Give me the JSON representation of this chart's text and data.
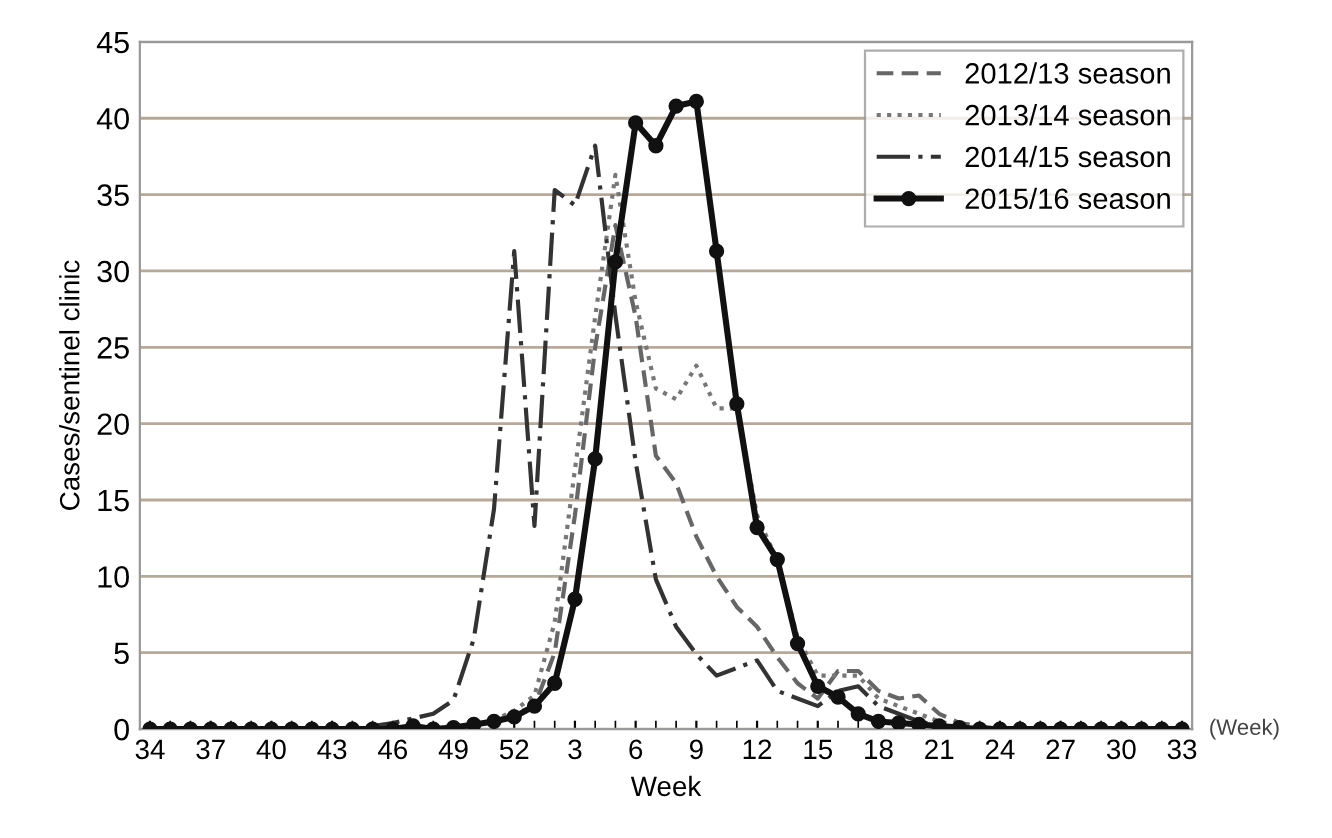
{
  "chart_data": {
    "type": "line",
    "xlabel": "Week",
    "ylabel": "Cases/sentinel clinic",
    "categories": [
      "34",
      null,
      null,
      "37",
      null,
      null,
      "40",
      null,
      null,
      "43",
      null,
      null,
      "46",
      null,
      null,
      "49",
      null,
      null,
      "52",
      null,
      null,
      "3",
      null,
      null,
      "6",
      null,
      null,
      "9",
      null,
      null,
      "12",
      null,
      null,
      "15",
      null,
      null,
      "18",
      null,
      null,
      "21",
      null,
      null,
      "24",
      null,
      null,
      "27",
      null,
      null,
      "30",
      null,
      null,
      "33"
    ],
    "series": [
      {
        "name": "2012/13 season",
        "color": "#666666",
        "line_style": "dashed",
        "marker": "none",
        "values": [
          0,
          0,
          0,
          0,
          0,
          0,
          0,
          0,
          0,
          0,
          0,
          0,
          0,
          0,
          0,
          0.1,
          0.2,
          0.5,
          1.0,
          1.5,
          5,
          14,
          25,
          33,
          27,
          17.9,
          16.1,
          12.6,
          10,
          8,
          6.7,
          4.7,
          3,
          2,
          3.8,
          3.8,
          2.5,
          2,
          2.2,
          1,
          0.4,
          0.2,
          0,
          0,
          0,
          0,
          0,
          0,
          0,
          0,
          0,
          0
        ]
      },
      {
        "name": "2013/14 season",
        "color": "#777777",
        "line_style": "dotted",
        "marker": "none",
        "values": [
          0,
          0,
          0,
          0,
          0,
          0,
          0,
          0,
          0,
          0,
          0,
          0,
          0,
          0,
          0,
          0.1,
          0.3,
          0.6,
          1.2,
          2.2,
          7,
          17,
          27,
          36.3,
          28,
          22.3,
          21.6,
          23.8,
          21,
          21,
          14,
          11,
          6,
          3.5,
          3.5,
          3.5,
          2,
          1.5,
          1,
          0.5,
          0.2,
          0,
          0,
          0,
          0,
          0,
          0,
          0,
          0,
          0,
          0,
          0
        ]
      },
      {
        "name": "2014/15 season",
        "color": "#333333",
        "line_style": "dashdot",
        "marker": "none",
        "values": [
          0,
          0,
          0,
          0,
          0,
          0,
          0,
          0,
          0,
          0,
          0,
          0.2,
          0.4,
          0.7,
          1.0,
          1.9,
          5.9,
          14.4,
          31.3,
          13.3,
          35.3,
          34.3,
          38.2,
          27.1,
          17.5,
          9.8,
          6.7,
          4.9,
          3.5,
          4.0,
          4.5,
          2.5,
          2.0,
          1.5,
          2.5,
          2.8,
          1.5,
          1.0,
          0.5,
          0.2,
          0,
          0,
          0,
          0,
          0,
          0,
          0,
          0,
          0,
          0,
          0,
          0
        ]
      },
      {
        "name": "2015/16 season",
        "color": "#111111",
        "line_style": "solid",
        "marker": "circle",
        "values": [
          0,
          0,
          0,
          0,
          0,
          0,
          0,
          0,
          0,
          0,
          0,
          0,
          0,
          0.2,
          0,
          0.1,
          0.3,
          0.5,
          0.8,
          1.5,
          3.0,
          8.5,
          17.7,
          30.6,
          39.7,
          38.2,
          40.8,
          41.1,
          31.3,
          21.3,
          13.2,
          11.1,
          5.6,
          2.8,
          2.1,
          1.0,
          0.5,
          0.4,
          0.3,
          0.2,
          0.1,
          0,
          0,
          0,
          0,
          0,
          0,
          0,
          0,
          0,
          0,
          0
        ]
      }
    ],
    "ylim": [
      0,
      45
    ],
    "yticks": [
      0,
      5,
      10,
      15,
      20,
      25,
      30,
      35,
      40,
      45
    ],
    "grid": "y",
    "legend": "top right",
    "annotations": [
      "(Week)"
    ]
  }
}
